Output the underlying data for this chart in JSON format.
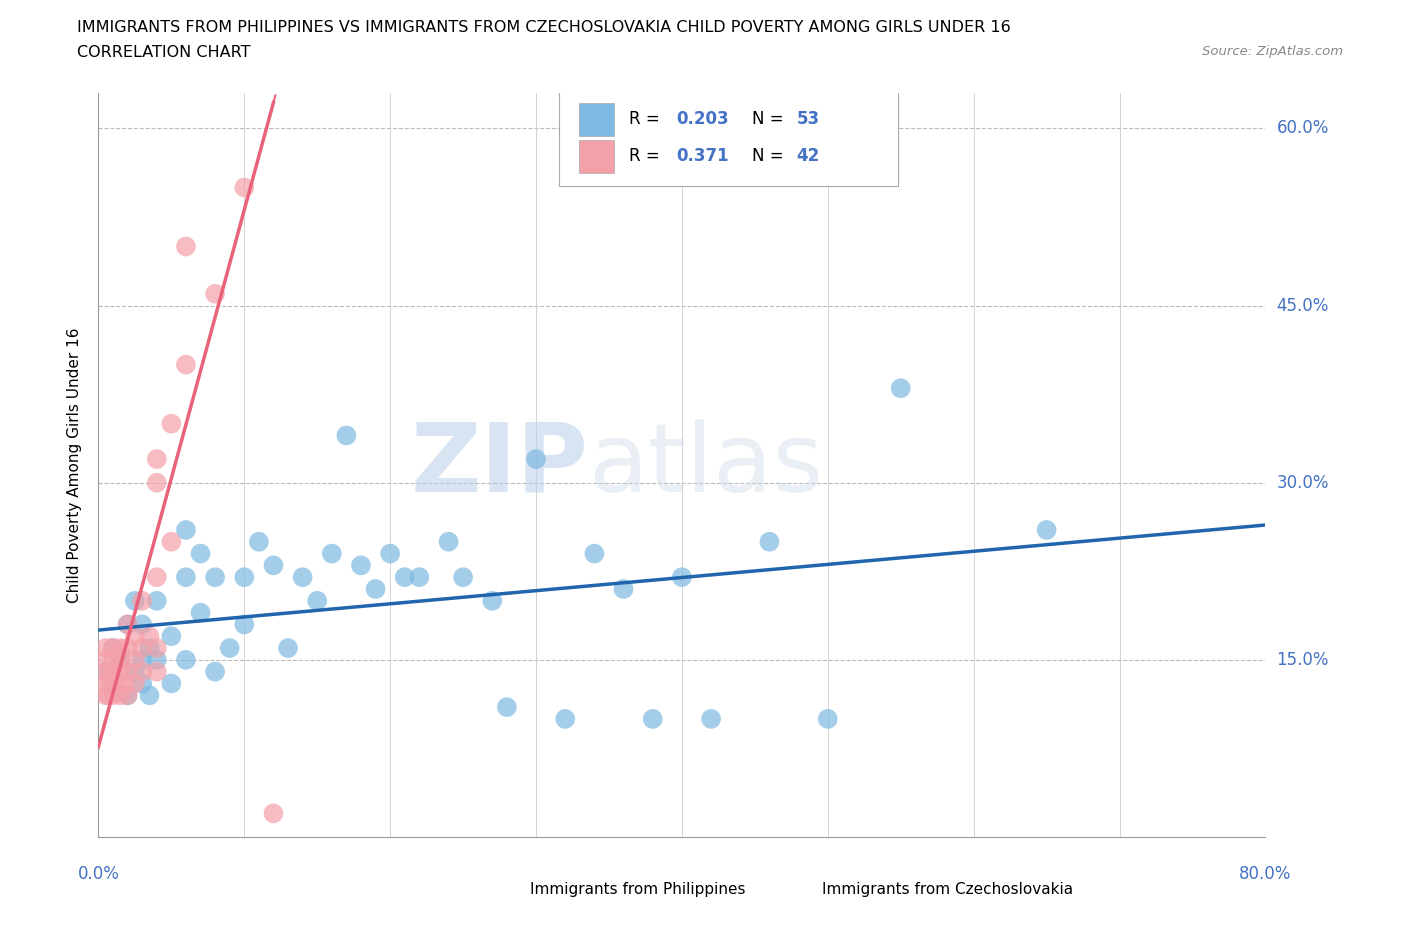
{
  "title": "IMMIGRANTS FROM PHILIPPINES VS IMMIGRANTS FROM CZECHOSLOVAKIA CHILD POVERTY AMONG GIRLS UNDER 16",
  "subtitle": "CORRELATION CHART",
  "source": "Source: ZipAtlas.com",
  "ylabel": "Child Poverty Among Girls Under 16",
  "watermark": "ZIPatlas",
  "color_philippines": "#7db9e0",
  "color_czechoslovakia": "#f4a0a8",
  "trend_color_philippines": "#2166ac",
  "trend_color_czechoslovakia": "#e8627a",
  "axis_label_color": "#4472c4",
  "xlim": [
    0.0,
    0.8
  ],
  "ylim": [
    0.0,
    0.63
  ],
  "phil_x": [
    0.005,
    0.01,
    0.015,
    0.02,
    0.02,
    0.025,
    0.025,
    0.03,
    0.03,
    0.03,
    0.035,
    0.035,
    0.04,
    0.04,
    0.05,
    0.05,
    0.06,
    0.06,
    0.06,
    0.07,
    0.07,
    0.08,
    0.08,
    0.09,
    0.1,
    0.1,
    0.11,
    0.12,
    0.13,
    0.14,
    0.15,
    0.16,
    0.17,
    0.18,
    0.19,
    0.2,
    0.21,
    0.22,
    0.24,
    0.25,
    0.27,
    0.28,
    0.3,
    0.32,
    0.34,
    0.36,
    0.38,
    0.4,
    0.42,
    0.46,
    0.5,
    0.55,
    0.65
  ],
  "phil_y": [
    0.14,
    0.16,
    0.15,
    0.12,
    0.18,
    0.14,
    0.2,
    0.13,
    0.15,
    0.18,
    0.12,
    0.16,
    0.15,
    0.2,
    0.13,
    0.17,
    0.22,
    0.15,
    0.26,
    0.19,
    0.24,
    0.14,
    0.22,
    0.16,
    0.22,
    0.18,
    0.25,
    0.23,
    0.16,
    0.22,
    0.2,
    0.24,
    0.34,
    0.23,
    0.21,
    0.24,
    0.22,
    0.22,
    0.25,
    0.22,
    0.2,
    0.11,
    0.32,
    0.1,
    0.24,
    0.21,
    0.1,
    0.22,
    0.1,
    0.25,
    0.1,
    0.38,
    0.26
  ],
  "czech_x": [
    0.005,
    0.005,
    0.005,
    0.005,
    0.005,
    0.007,
    0.008,
    0.008,
    0.01,
    0.01,
    0.01,
    0.01,
    0.01,
    0.012,
    0.015,
    0.015,
    0.015,
    0.015,
    0.018,
    0.02,
    0.02,
    0.02,
    0.02,
    0.025,
    0.025,
    0.025,
    0.03,
    0.03,
    0.03,
    0.035,
    0.04,
    0.04,
    0.04,
    0.04,
    0.04,
    0.05,
    0.05,
    0.06,
    0.06,
    0.08,
    0.1,
    0.12
  ],
  "czech_y": [
    0.12,
    0.13,
    0.14,
    0.15,
    0.16,
    0.12,
    0.13,
    0.14,
    0.12,
    0.13,
    0.14,
    0.15,
    0.16,
    0.13,
    0.12,
    0.14,
    0.15,
    0.16,
    0.13,
    0.12,
    0.14,
    0.16,
    0.18,
    0.13,
    0.15,
    0.17,
    0.14,
    0.16,
    0.2,
    0.17,
    0.14,
    0.16,
    0.22,
    0.3,
    0.32,
    0.25,
    0.35,
    0.4,
    0.5,
    0.46,
    0.55,
    0.02
  ],
  "ytick_vals": [
    0.0,
    0.15,
    0.3,
    0.45,
    0.6
  ],
  "ytick_labels_right": {
    "0.15": "15.0%",
    "0.30": "30.0%",
    "0.45": "45.0%",
    "0.60": "60.0%"
  },
  "xtick_vals": [
    0.0,
    0.1,
    0.2,
    0.3,
    0.4,
    0.5,
    0.6,
    0.7,
    0.8
  ]
}
